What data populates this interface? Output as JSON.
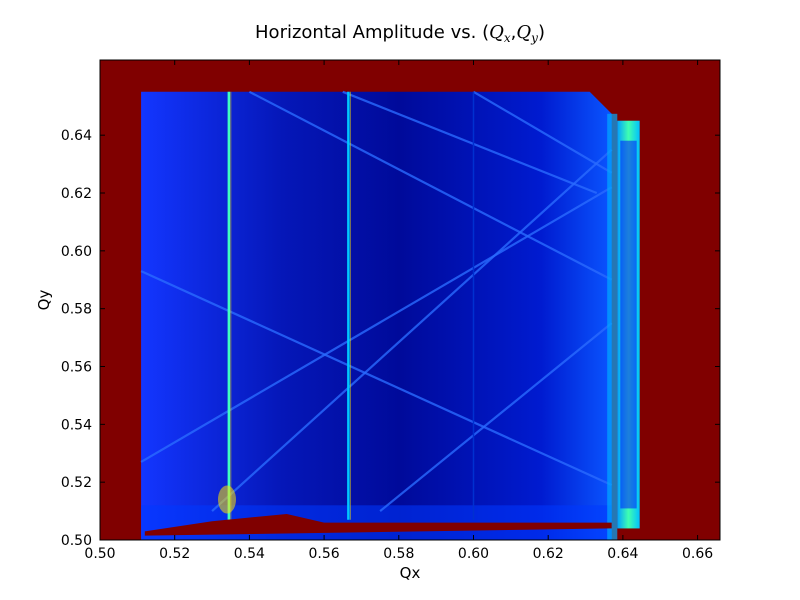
{
  "title": {
    "prefix": "Horizontal Amplitude vs. (",
    "q": "Q",
    "sub_x": "x",
    "sep": ",",
    "sub_y": "y",
    "suffix": ")"
  },
  "chart_data": {
    "type": "heatmap",
    "title": "Horizontal Amplitude vs. (Qx,Qy)",
    "xlabel": "Qx",
    "ylabel": "Qy",
    "xlim": [
      0.5,
      0.666
    ],
    "ylim": [
      0.5,
      0.666
    ],
    "xticks": [
      0.5,
      0.52,
      0.54,
      0.56,
      0.58,
      0.6,
      0.62,
      0.64,
      0.66
    ],
    "yticks": [
      0.5,
      0.52,
      0.54,
      0.56,
      0.58,
      0.6,
      0.62,
      0.64
    ],
    "xtick_labels": [
      "0.50",
      "0.52",
      "0.54",
      "0.56",
      "0.58",
      "0.60",
      "0.62",
      "0.64",
      "0.66"
    ],
    "ytick_labels": [
      "0.50",
      "0.52",
      "0.54",
      "0.56",
      "0.58",
      "0.60",
      "0.62",
      "0.64"
    ],
    "colormap": "jet",
    "colors": {
      "background_high": "#800000",
      "field_low": "#00008f",
      "field_mid": "#0a2aff",
      "line_highlight": "#00c8ff"
    },
    "data_region": {
      "qx": [
        0.511,
        0.637
      ],
      "qy": [
        0.5,
        0.655
      ]
    },
    "right_band": {
      "qx": [
        0.6385,
        0.6445
      ],
      "qy": [
        0.504,
        0.645
      ]
    },
    "vertical_resonances_qx": [
      0.5345,
      0.5665,
      0.6
    ],
    "bottom_feature_qy": 0.506,
    "diagonal_resonances": [
      {
        "from": [
          0.511,
          0.527
        ],
        "to": [
          0.637,
          0.622
        ]
      },
      {
        "from": [
          0.53,
          0.51
        ],
        "to": [
          0.637,
          0.635
        ]
      },
      {
        "from": [
          0.54,
          0.655
        ],
        "to": [
          0.637,
          0.59
        ]
      },
      {
        "from": [
          0.575,
          0.51
        ],
        "to": [
          0.637,
          0.575
        ]
      },
      {
        "from": [
          0.511,
          0.593
        ],
        "to": [
          0.637,
          0.519
        ]
      },
      {
        "from": [
          0.565,
          0.655
        ],
        "to": [
          0.633,
          0.62
        ]
      },
      {
        "from": [
          0.6,
          0.655
        ],
        "to": [
          0.637,
          0.627
        ]
      }
    ]
  }
}
